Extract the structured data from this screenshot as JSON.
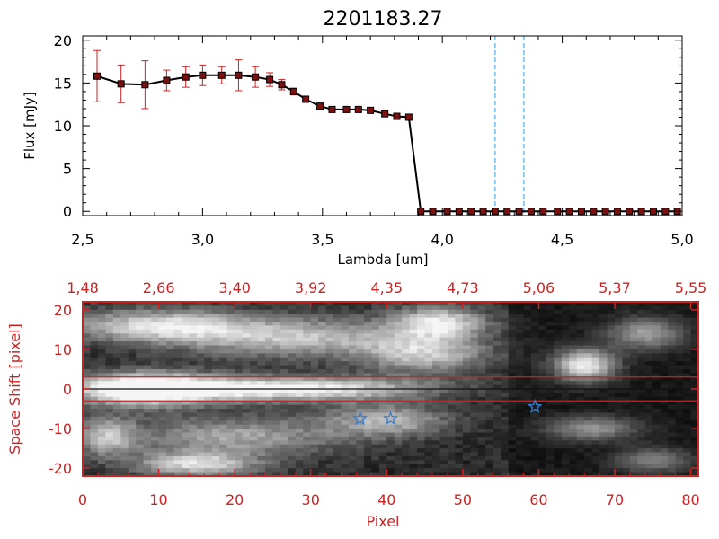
{
  "colors": {
    "axis_black": "#000000",
    "axis_red": "#cc2222",
    "marker_fill": "#7a1010",
    "errorbar": "#cc2222",
    "line": "#000000",
    "vline": "#3399dd",
    "star": "#3a7fd0",
    "hline": "#cc2222"
  },
  "chart_data": [
    {
      "type": "line",
      "title": "2201183.27",
      "xlabel": "Lambda [um]",
      "ylabel": "Flux [mJy]",
      "xlim": [
        2.5,
        5.0
      ],
      "ylim": [
        -0.5,
        20.5
      ],
      "xticks": [
        "2.5",
        "3.0",
        "3.5",
        "4.0",
        "4.5",
        "5.0"
      ],
      "yticks": [
        "0",
        "5",
        "10",
        "15",
        "20"
      ],
      "series": [
        {
          "name": "Flux",
          "x": [
            2.56,
            2.66,
            2.76,
            2.85,
            2.93,
            3.0,
            3.08,
            3.15,
            3.22,
            3.28,
            3.33,
            3.38,
            3.43,
            3.49,
            3.54,
            3.6,
            3.65,
            3.7,
            3.76,
            3.81,
            3.86,
            3.91,
            3.96,
            4.02,
            4.07,
            4.12,
            4.17,
            4.22,
            4.27,
            4.32,
            4.37,
            4.42,
            4.48,
            4.53,
            4.58,
            4.63,
            4.68,
            4.73,
            4.78,
            4.83,
            4.88,
            4.93,
            4.98
          ],
          "y": [
            15.8,
            14.9,
            14.8,
            15.3,
            15.7,
            15.9,
            15.9,
            15.9,
            15.7,
            15.4,
            14.8,
            14.0,
            13.1,
            12.3,
            11.9,
            11.9,
            11.9,
            11.8,
            11.4,
            11.1,
            11.0,
            0.0,
            0.0,
            0.0,
            0.0,
            0.0,
            0.0,
            0.0,
            0.0,
            0.0,
            0.0,
            0.0,
            0.0,
            0.0,
            0.0,
            0.0,
            0.0,
            0.0,
            0.0,
            0.0,
            0.0,
            0.0,
            0.0
          ],
          "err": [
            3.0,
            2.2,
            2.8,
            1.2,
            1.2,
            1.2,
            1.0,
            1.8,
            1.2,
            0.8,
            0.6,
            0.4,
            0.3,
            0.3,
            0.3,
            0.3,
            0.3,
            0.3,
            0.3,
            0.3,
            0.3,
            0,
            0,
            0,
            0,
            0,
            0,
            0,
            0,
            0,
            0,
            0,
            0,
            0,
            0,
            0,
            0,
            0,
            0,
            0,
            0,
            0,
            0
          ]
        }
      ],
      "vlines": [
        4.22,
        4.34
      ]
    },
    {
      "type": "heatmap",
      "xlabel": "Pixel",
      "ylabel": "Space Shift [pixel]",
      "xlim": [
        0,
        81
      ],
      "ylim": [
        -22,
        22
      ],
      "xticks": [
        "0",
        "10",
        "20",
        "30",
        "40",
        "50",
        "60",
        "70",
        "80"
      ],
      "yticks": [
        "20",
        "10",
        "0",
        "-10",
        "-20"
      ],
      "top_ticks": [
        "1.48",
        "2.66",
        "3.40",
        "3.92",
        "4.35",
        "4.73",
        "5.06",
        "5.37",
        "5.55"
      ],
      "hlines": [
        3,
        0,
        -3
      ],
      "stars": [
        [
          36.5,
          -7.5
        ],
        [
          40.5,
          -7.5
        ],
        [
          59.5,
          -4.5
        ]
      ],
      "blobs": [
        {
          "x": 8,
          "y": 0,
          "rx": 9,
          "ry": 4,
          "v": 1.0
        },
        {
          "x": 20,
          "y": 0,
          "rx": 16,
          "ry": 3,
          "v": 0.65
        },
        {
          "x": 34,
          "y": 0,
          "rx": 14,
          "ry": 3,
          "v": 0.45
        },
        {
          "x": 10,
          "y": 16,
          "rx": 12,
          "ry": 4,
          "v": 0.7
        },
        {
          "x": 28,
          "y": 13,
          "rx": 16,
          "ry": 5,
          "v": 0.6
        },
        {
          "x": 45,
          "y": 9,
          "rx": 8,
          "ry": 5,
          "v": 0.6
        },
        {
          "x": 47,
          "y": 17,
          "rx": 6,
          "ry": 4,
          "v": 0.7
        },
        {
          "x": 66,
          "y": 6,
          "rx": 4,
          "ry": 4,
          "v": 0.9
        },
        {
          "x": 74,
          "y": 14,
          "rx": 5,
          "ry": 4,
          "v": 0.55
        },
        {
          "x": 20,
          "y": -12,
          "rx": 14,
          "ry": 5,
          "v": 0.5
        },
        {
          "x": 40,
          "y": -8,
          "rx": 8,
          "ry": 4,
          "v": 0.55
        },
        {
          "x": 15,
          "y": -19,
          "rx": 8,
          "ry": 3,
          "v": 0.7
        },
        {
          "x": 67,
          "y": -10,
          "rx": 6,
          "ry": 3,
          "v": 0.5
        },
        {
          "x": 75,
          "y": -18,
          "rx": 5,
          "ry": 3,
          "v": 0.45
        },
        {
          "x": 3,
          "y": -12,
          "rx": 4,
          "ry": 5,
          "v": 0.55
        }
      ]
    }
  ]
}
